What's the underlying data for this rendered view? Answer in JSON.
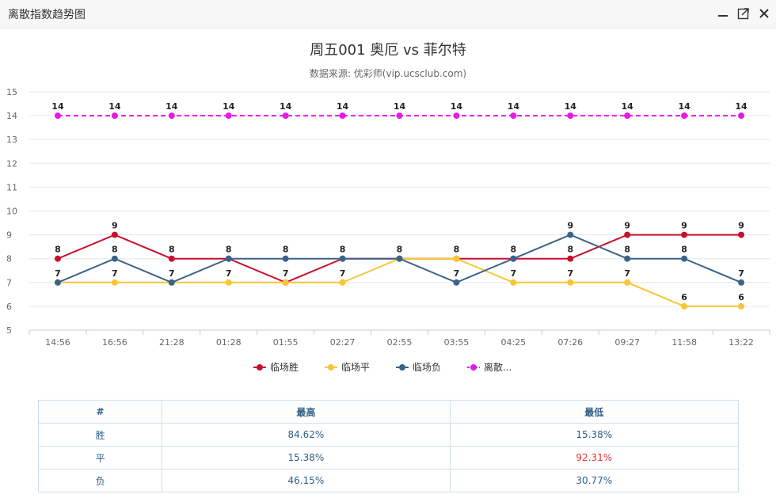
{
  "window": {
    "title": "离散指数趋势图",
    "controls": [
      {
        "name": "minimize-icon"
      },
      {
        "name": "maximize-icon"
      },
      {
        "name": "close-icon"
      }
    ]
  },
  "chart_data": {
    "type": "line",
    "title": "周五001 奥厄 vs 菲尔特",
    "subtitle": "数据来源: 优彩师(vip.ucsclub.com)",
    "x": [
      "14:56",
      "16:56",
      "21:28",
      "01:28",
      "01:55",
      "02:27",
      "02:55",
      "03:55",
      "04:25",
      "07:26",
      "09:27",
      "11:58",
      "13:22"
    ],
    "ylim": [
      5,
      15
    ],
    "yticks": [
      5,
      6,
      7,
      8,
      9,
      10,
      11,
      12,
      13,
      14,
      15
    ],
    "grid": true,
    "legend": "bottom",
    "series": [
      {
        "name": "临场胜",
        "color": "#c8102e",
        "dashed": false,
        "values": [
          8,
          9,
          8,
          8,
          7,
          8,
          8,
          8,
          8,
          8,
          9,
          9,
          9
        ]
      },
      {
        "name": "临场平",
        "color": "#f7c634",
        "dashed": false,
        "values": [
          7,
          7,
          7,
          7,
          7,
          7,
          8,
          8,
          7,
          7,
          7,
          6,
          6
        ]
      },
      {
        "name": "临场负",
        "color": "#3a6389",
        "dashed": false,
        "values": [
          7,
          8,
          7,
          8,
          8,
          8,
          8,
          7,
          8,
          9,
          8,
          8,
          7
        ]
      },
      {
        "name": "离散...",
        "color": "#e619e6",
        "dashed": true,
        "values": [
          14,
          14,
          14,
          14,
          14,
          14,
          14,
          14,
          14,
          14,
          14,
          14,
          14
        ]
      }
    ]
  },
  "table": {
    "headers": [
      "#",
      "最高",
      "最低"
    ],
    "rows": [
      {
        "label": "胜",
        "high": "84.62%",
        "low": "15.38%",
        "low_red": false
      },
      {
        "label": "平",
        "high": "15.38%",
        "low": "92.31%",
        "low_red": true
      },
      {
        "label": "负",
        "high": "46.15%",
        "low": "30.77%",
        "low_red": false
      }
    ]
  }
}
